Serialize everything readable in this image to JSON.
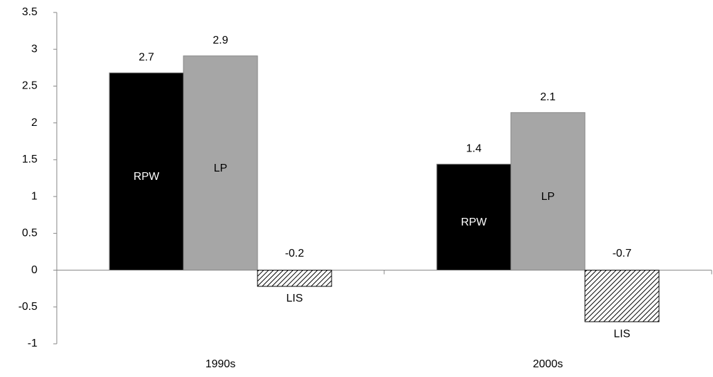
{
  "chart_data": {
    "type": "bar",
    "categories": [
      "1990s",
      "2000s"
    ],
    "series": [
      {
        "name": "RPW",
        "color": "#000000",
        "values": [
          2.68,
          1.44
        ],
        "value_labels": [
          "2.7",
          "1.4"
        ]
      },
      {
        "name": "LP",
        "color": "#a6a6a6",
        "values": [
          2.91,
          2.14
        ],
        "value_labels": [
          "2.9",
          "2.1"
        ]
      },
      {
        "name": "LIS",
        "color": "#000000",
        "pattern": "hatch",
        "values": [
          -0.22,
          -0.7
        ],
        "value_labels": [
          "-0.2",
          "-0.7"
        ]
      }
    ],
    "ylim": [
      -1,
      3.5
    ],
    "yticks": [
      -1,
      -0.5,
      0,
      0.5,
      1,
      1.5,
      2,
      2.5,
      3,
      3.5
    ],
    "grid": false
  }
}
